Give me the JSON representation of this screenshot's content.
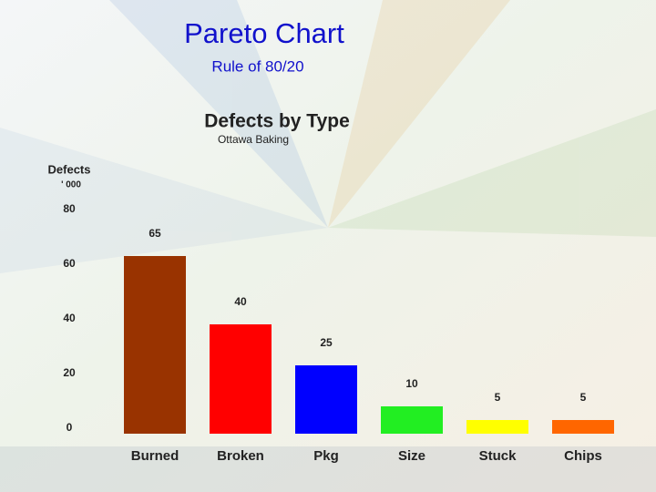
{
  "slide_title": "Pareto Chart",
  "slide_subtitle": "Rule of 80/20",
  "chart_data": {
    "type": "bar",
    "title": "Defects by Type",
    "subtitle": "Ottawa Baking",
    "y_label": "Defects",
    "y_unit": "' 000",
    "categories": [
      "Burned",
      "Broken",
      "Pkg",
      "Size",
      "Stuck",
      "Chips"
    ],
    "values": [
      65,
      40,
      25,
      10,
      5,
      5
    ],
    "colors": [
      "#993300",
      "#ff0000",
      "#0000ff",
      "#22ee22",
      "#ffff00",
      "#ff6600"
    ],
    "ylim": [
      0,
      80
    ],
    "yticks": [
      0,
      20,
      40,
      60,
      80
    ],
    "grid": false
  }
}
